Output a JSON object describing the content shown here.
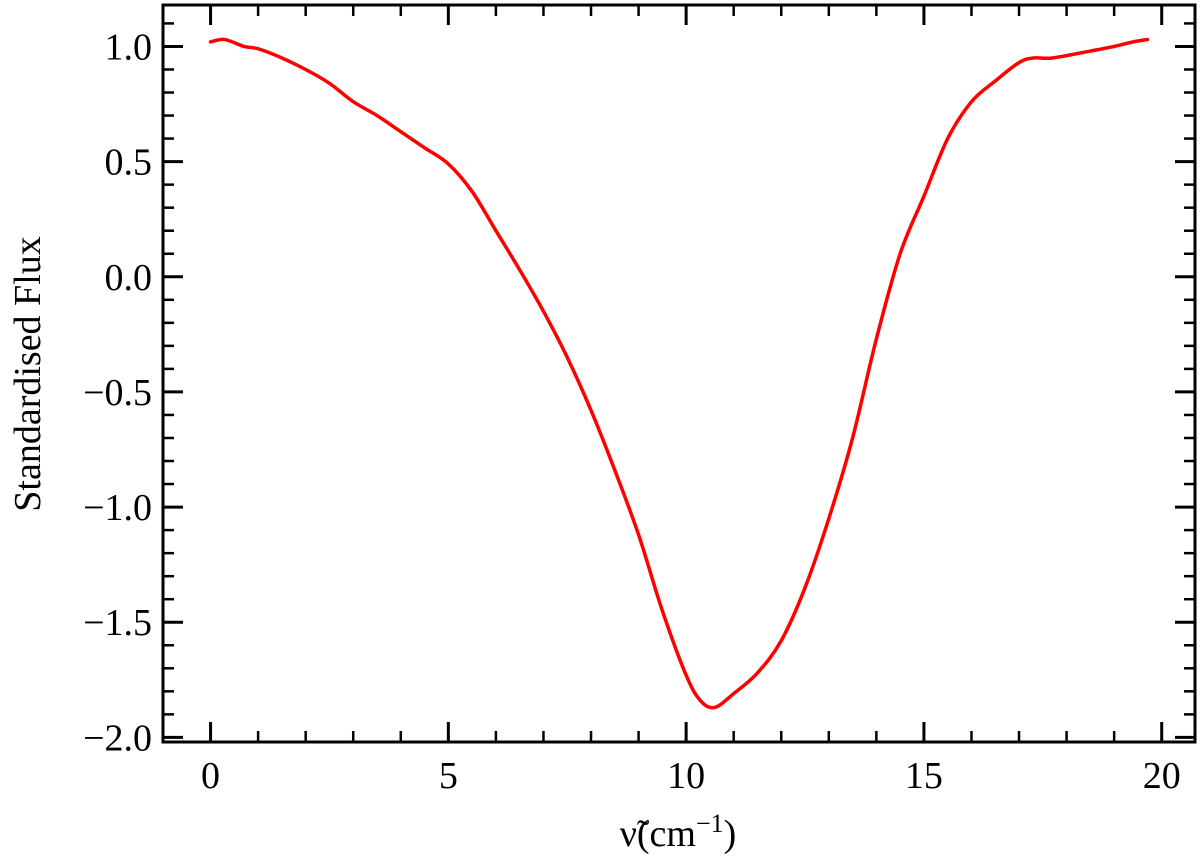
{
  "chart_data": {
    "type": "line",
    "title": "",
    "xlabel": "ν̃(cm",
    "xlabel_superscript": "−1",
    "xlabel_close": ")",
    "ylabel": "Standardised Flux",
    "xlim": [
      -1,
      20.7
    ],
    "ylim": [
      -2.02,
      1.18
    ],
    "x_ticks": [
      0,
      5,
      10,
      15,
      20
    ],
    "x_tick_labels": [
      "0",
      "5",
      "10",
      "15",
      "20"
    ],
    "x_minor_step": 1,
    "y_ticks": [
      1.0,
      0.5,
      0.0,
      -0.5,
      -1.0,
      -1.5,
      -2.0
    ],
    "y_tick_labels": [
      "1.0",
      "0.5",
      "0.0",
      "−0.5",
      "−1.0",
      "−1.5",
      "−2.0"
    ],
    "y_minor_step": 0.1,
    "grid": false,
    "legend": "none",
    "series": [
      {
        "color": "#ff0000",
        "x": [
          0,
          0.3,
          0.7,
          1,
          1.5,
          2,
          2.5,
          3,
          3.5,
          4,
          4.5,
          5,
          5.5,
          6,
          6.5,
          7,
          7.5,
          8,
          8.5,
          9,
          9.5,
          10,
          10.3,
          10.6,
          11,
          11.5,
          12,
          12.5,
          13,
          13.5,
          14,
          14.5,
          15,
          15.5,
          16,
          16.5,
          17,
          17.3,
          17.7,
          18.5,
          19,
          19.4,
          19.7
        ],
        "y": [
          1.02,
          1.03,
          1.0,
          0.99,
          0.95,
          0.9,
          0.84,
          0.76,
          0.7,
          0.63,
          0.56,
          0.49,
          0.37,
          0.2,
          0.03,
          -0.15,
          -0.35,
          -0.58,
          -0.84,
          -1.12,
          -1.45,
          -1.73,
          -1.84,
          -1.87,
          -1.81,
          -1.72,
          -1.58,
          -1.35,
          -1.05,
          -0.7,
          -0.27,
          0.1,
          0.35,
          0.6,
          0.76,
          0.85,
          0.93,
          0.95,
          0.95,
          0.98,
          1.0,
          1.02,
          1.03
        ]
      }
    ]
  }
}
